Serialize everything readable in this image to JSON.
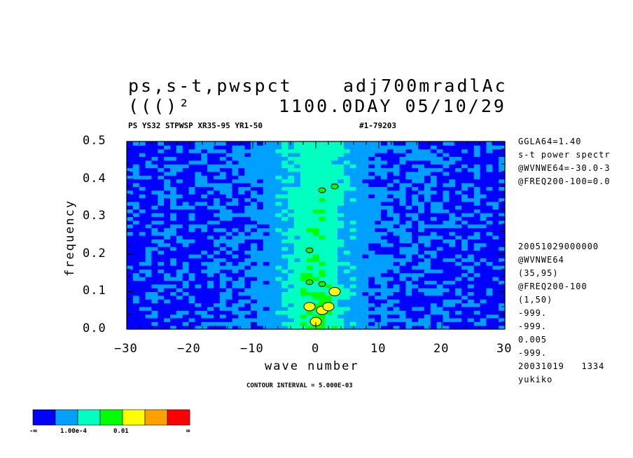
{
  "header": {
    "title_left": "ps,s-t,pwspct",
    "title_right": "adj700mradlAc",
    "title2_left": "((()²",
    "title2_right": "1100.0DAY 05/10/29",
    "subtitle_left": "PS YS32 STPWSP XR35-95 YR1-50",
    "subtitle_right": "#1-79203"
  },
  "side_info": {
    "top": [
      "GGLA64=1.40",
      "s-t power spectr",
      "@WVNWE64=-30.0-3",
      "@FREQ200-100=0.0"
    ],
    "bottom": [
      "20051029000000",
      "@WVNWE64",
      "(35,95)",
      "@FREQ200-100",
      "(1,50)",
      "-999.",
      "-999.",
      "0.005",
      "-999.",
      "20031019   1334",
      "yukiko"
    ]
  },
  "footer": {
    "contour_interval": "CONTOUR INTERVAL = 5.000E-03"
  },
  "colorbar": {
    "colors": [
      "#0000ff",
      "#00a0ff",
      "#00ffc0",
      "#00ff00",
      "#ffff00",
      "#ffa000",
      "#ff0000"
    ],
    "labels": [
      "-∞",
      "1.00e-4",
      "0.01",
      "∞"
    ]
  },
  "chart_data": {
    "type": "heatmap",
    "xlabel": "wave number",
    "ylabel": "frequency",
    "xlim": [
      -30,
      30
    ],
    "ylim": [
      0.0,
      0.5
    ],
    "x_ticks": [
      "−30",
      "−20",
      "−10",
      "0",
      "10",
      "20",
      "30"
    ],
    "y_ticks": [
      "0.0",
      "0.1",
      "0.2",
      "0.3",
      "0.4",
      "0.5"
    ],
    "levels": [
      "-inf",
      "1.00e-4",
      "0.01",
      "inf"
    ],
    "description_of_field": "power peaks near wave number 0 at low frequency",
    "peaks": [
      {
        "x": 0,
        "y": 0.02,
        "level": 4
      },
      {
        "x": 1,
        "y": 0.05,
        "level": 4
      },
      {
        "x": 2,
        "y": 0.06,
        "level": 4
      },
      {
        "x": -1,
        "y": 0.06,
        "level": 4
      },
      {
        "x": 3,
        "y": 0.1,
        "level": 4
      },
      {
        "x": 1,
        "y": 0.12,
        "level": 3
      },
      {
        "x": -1,
        "y": 0.125,
        "level": 3
      },
      {
        "x": -1,
        "y": 0.21,
        "level": 3
      },
      {
        "x": 3,
        "y": 0.38,
        "level": 3
      },
      {
        "x": 1,
        "y": 0.37,
        "level": 3
      }
    ]
  }
}
